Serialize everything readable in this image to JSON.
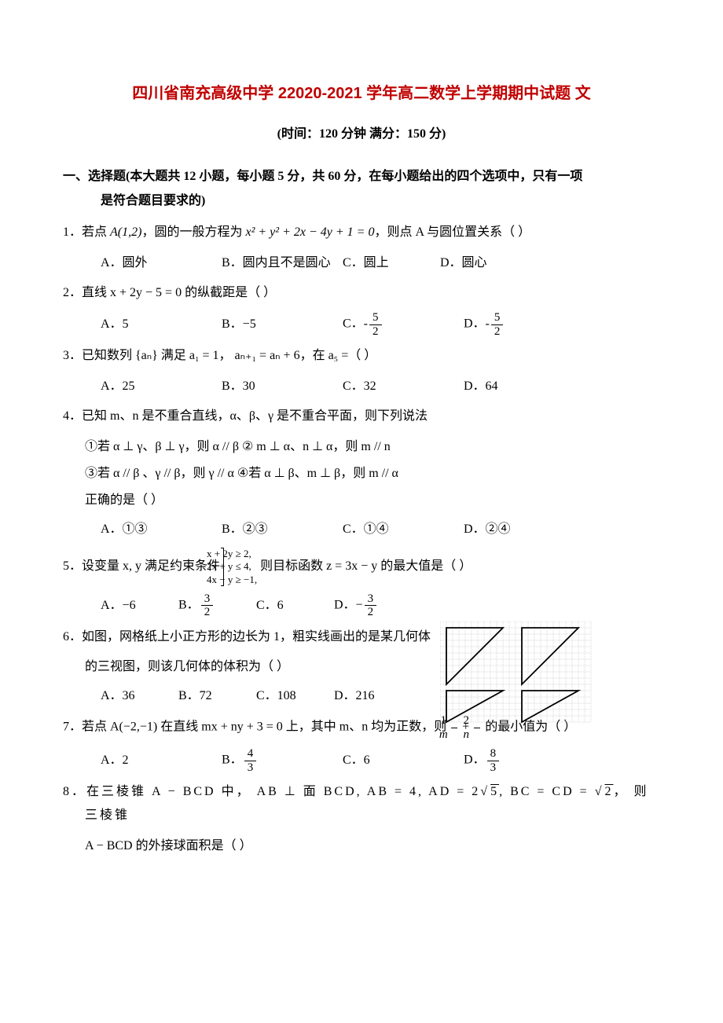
{
  "title": "四川省南充高级中学 22020-2021 学年高二数学上学期期中试题 文",
  "subtitle": "(时间：120 分钟  满分：150 分)",
  "section1": {
    "line1": "一、选择题(本大题共 12 小题，每小题 5 分，共 60 分，在每小题给出的四个选项中，只有一项",
    "line2": "是符合题目要求的)"
  },
  "q1": {
    "stem_pre": "1．若点 ",
    "point": "A(1,2)",
    "stem_mid": "，圆的一般方程为 ",
    "eq": "x² + y² + 2x − 4y + 1 = 0",
    "stem_post": "，则点 A 与圆位置关系（    ）",
    "A": "A．圆外",
    "B": "B．圆内且不是圆心",
    "C": "C．圆上",
    "D": "D．圆心"
  },
  "q2": {
    "stem": "2．直线 x + 2y − 5 = 0 的纵截距是（     ）",
    "A": "A．5",
    "B": "B．−5",
    "C_prefix": "C．-",
    "C_num": "5",
    "C_den": "2",
    "D_prefix": "D．-",
    "D_num": "5",
    "D_den": "2"
  },
  "q3": {
    "stem": "3．已知数列 {aₙ} 满足 a₁ = 1， aₙ₊₁ = aₙ + 6，在 a₅ =（    ）",
    "A": "A．25",
    "B": "B．30",
    "C": "C．32",
    "D": "D．64"
  },
  "q4": {
    "stem": "4．已知 m、n 是不重合直线，α、β、γ 是不重合平面，则下列说法",
    "s1": "①若 α ⊥ γ、β ⊥ γ，则 α // β     ② m ⊥ α、n ⊥ α，则 m // n",
    "s2": "③若 α // β 、γ // β，则 γ // α     ④若 α ⊥ β、m ⊥ β，则 m // α",
    "s3": "正确的是（    ）",
    "A": "A．①③",
    "B": "B．②③",
    "C": "C．①④",
    "D": "D．②④"
  },
  "q5": {
    "stem_pre": "5．设变量 x, y 满足约束条件 ",
    "sys1": "x + 2y ≥ 2,",
    "sys2": "2x + y ≤ 4,",
    "sys3": "4x − y ≥ −1,",
    "stem_post": "  则目标函数 z = 3x − y 的最大值是（    ）",
    "A": "A．−6",
    "B_prefix": "B．",
    "B_num": "3",
    "B_den": "2",
    "C": "C．6",
    "D_prefix": "D．−",
    "D_num": "3",
    "D_den": "2"
  },
  "q6": {
    "l1": "6．如图，网格纸上小正方形的边长为 1，粗实线画出的是某几何体",
    "l2": "的三视图，则该几何体的体积为（    ）",
    "A": "A．36",
    "B": "B．72",
    "C": "C．108",
    "D": "D．216"
  },
  "q7": {
    "stem_pre": "7．若点 A(−2,−1) 在直线 mx + ny + 3 = 0 上，其中 m、n 均为正数，则 ",
    "f1_num": "1",
    "f1_den": "m",
    "plus": " + ",
    "f2_num": "2",
    "f2_den": "n",
    "stem_post": " 的最小值为（    ）",
    "A": "A．2",
    "B_prefix": "B．",
    "B_num": "4",
    "B_den": "3",
    "C": "C．6",
    "D_prefix": "D．",
    "D_num": "8",
    "D_den": "3"
  },
  "q8": {
    "l1_pre": "8．在三棱锥 A − BCD 中， AB ⊥ 面 BCD, AB = 4, AD = 2",
    "l1_sqrt1": "5",
    "l1_mid": ", BC = CD = ",
    "l1_sqrt2": "2",
    "l1_post": "， 则三棱锥",
    "l2": "A − BCD 的外接球面积是（    ）"
  },
  "grid_fig": {
    "cell": 8,
    "cols": 24,
    "rows": 16,
    "grid_color": "#b0b0b0",
    "line_color": "#000000",
    "tri1": [
      [
        2,
        1
      ],
      [
        13,
        1
      ],
      [
        2,
        12
      ]
    ],
    "tri2": [
      [
        14,
        1
      ],
      [
        25,
        1
      ],
      [
        14,
        12
      ]
    ],
    "tri3": [
      [
        2,
        13
      ],
      [
        13,
        13
      ],
      [
        2,
        18
      ]
    ],
    "tri4": [
      [
        14,
        13
      ],
      [
        25,
        13
      ],
      [
        14,
        18
      ]
    ]
  }
}
